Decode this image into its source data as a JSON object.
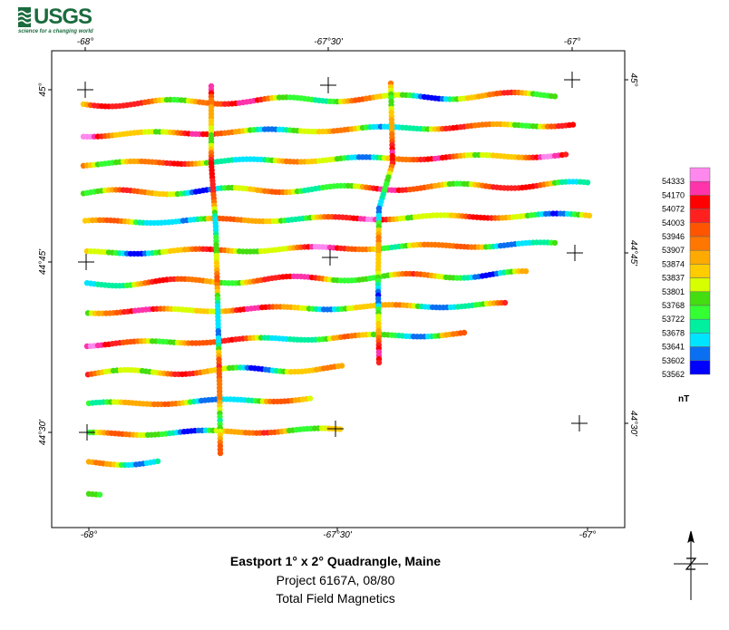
{
  "header": {
    "logo_text": "USGS",
    "logo_tagline": "science for a changing world",
    "logo_color": "#1b6b3e"
  },
  "map": {
    "frame_color": "#000000",
    "longitude_labels": [
      "-68°",
      "-67°30'",
      "-67°"
    ],
    "latitude_labels": [
      "45°",
      "44°45'",
      "44°30'"
    ],
    "line_color_order_low_to_high": [
      "#0000ff",
      "#0a6ff0",
      "#00e5ff",
      "#00f0a0",
      "#33ff33",
      "#44dd11",
      "#d8ff00",
      "#ffcc00",
      "#ffaa00",
      "#ff7700",
      "#ff5500",
      "#ff2020",
      "#ff0000",
      "#ff33aa",
      "#ff88ee"
    ]
  },
  "legend": {
    "unit": "nT",
    "values": [
      "54333",
      "54170",
      "54072",
      "54003",
      "53946",
      "53907",
      "53874",
      "53837",
      "53801",
      "53768",
      "53722",
      "53678",
      "53641",
      "53602",
      "53562"
    ],
    "colors_top_to_bottom": [
      "#ff88ee",
      "#ff33aa",
      "#ff0000",
      "#ff2020",
      "#ff5500",
      "#ff7700",
      "#ffaa00",
      "#ffcc00",
      "#d8ff00",
      "#44dd11",
      "#33ff33",
      "#00f0a0",
      "#00e5ff",
      "#0a6ff0",
      "#0000ff"
    ]
  },
  "titles": {
    "line1": "Eastport 1° x 2° Quadrangle, Maine",
    "line2": "Project 6167A, 08/80",
    "line3": "Total Field Magnetics"
  },
  "north_arrow": {
    "icon": "north-arrow-icon",
    "label": "N"
  }
}
